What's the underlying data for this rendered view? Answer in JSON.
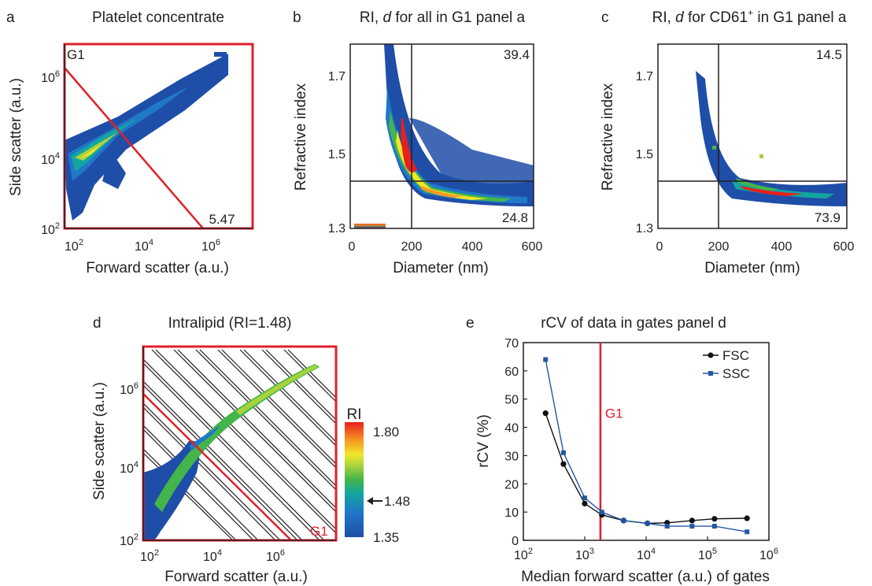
{
  "panels": {
    "a": {
      "letter": "a",
      "title": "Platelet concentrate",
      "xlabel": "Forward scatter (a.u.)",
      "ylabel": "Side scatter (a.u.)",
      "xticks": [
        "10",
        "10",
        "10"
      ],
      "xexp": [
        "2",
        "4",
        "6"
      ],
      "yticks": [
        "10",
        "10",
        "10"
      ],
      "yexp": [
        "2",
        "4",
        "6"
      ],
      "gate_label": "G1",
      "gate_value": "5.47"
    },
    "b": {
      "letter": "b",
      "title_pre": "RI, ",
      "title_d": "d",
      "title_post": " for all in G1 panel a",
      "xlabel": "Diameter (nm)",
      "ylabel": "Refractive index",
      "xticks": [
        "0",
        "200",
        "400",
        "600"
      ],
      "yticks": [
        "1.3",
        "1.5",
        "1.7"
      ],
      "quad_top": "39.4",
      "quad_bottom": "24.8"
    },
    "c": {
      "letter": "c",
      "title_pre": "RI, ",
      "title_d": "d",
      "title_post1": " for CD61",
      "title_sup": "+",
      "title_post2": " in G1 panel a",
      "xlabel": "Diameter (nm)",
      "ylabel": "Refractive index",
      "xticks": [
        "0",
        "200",
        "400",
        "600"
      ],
      "yticks": [
        "1.3",
        "1.5",
        "1.7"
      ],
      "quad_top": "14.5",
      "quad_bottom": "73.9"
    },
    "d": {
      "letter": "d",
      "title": "Intralipid (RI=1.48)",
      "xlabel": "Forward scatter (a.u.)",
      "ylabel": "Side scatter (a.u.)",
      "xticks": [
        "10",
        "10",
        "10"
      ],
      "xexp": [
        "2",
        "4",
        "6"
      ],
      "yticks": [
        "10",
        "10",
        "10"
      ],
      "yexp": [
        "2",
        "4",
        "6"
      ],
      "gate_label": "G1",
      "colorbar_title": "RI",
      "colorbar_max": "1.80",
      "colorbar_marker": "1.48",
      "colorbar_min": "1.35"
    },
    "e": {
      "letter": "e",
      "title": "rCV of data in gates panel d",
      "xlabel": "Median forward scatter (a.u.) of gates",
      "ylabel": "rCV (%)",
      "xticks": [
        "10",
        "10",
        "10",
        "10",
        "10"
      ],
      "xexp": [
        "2",
        "3",
        "4",
        "5",
        "6"
      ],
      "yticks": [
        "0",
        "10",
        "20",
        "30",
        "40",
        "50",
        "60",
        "70"
      ],
      "gate_label": "G1"
    }
  },
  "colors": {
    "gate": "#e0202a",
    "fsc": "#111111",
    "ssc": "#2457a6",
    "axis": "#231f20",
    "low": "#1f4ea8",
    "high": "#e8201c"
  },
  "chart_data": [
    {
      "panel": "a",
      "type": "heatmap",
      "title": "Platelet concentrate",
      "xlabel": "Forward scatter (a.u.)",
      "ylabel": "Side scatter (a.u.)",
      "xscale": "log",
      "yscale": "log",
      "xlim": [
        80,
        10000000
      ],
      "ylim": [
        100,
        10000000
      ],
      "gate": "G1",
      "annotation": "5.47"
    },
    {
      "panel": "b",
      "type": "heatmap",
      "title": "RI, d for all in G1 panel a",
      "xlabel": "Diameter (nm)",
      "ylabel": "Refractive index",
      "xlim": [
        0,
        600
      ],
      "ylim": [
        1.3,
        1.8
      ],
      "quadrant_lines": {
        "x": 210,
        "y": 1.43
      },
      "quadrant_values": {
        "top_right": 39.4,
        "bottom_right": 24.8
      }
    },
    {
      "panel": "c",
      "type": "heatmap",
      "title": "RI, d for CD61+ in G1 panel a",
      "xlabel": "Diameter (nm)",
      "ylabel": "Refractive index",
      "xlim": [
        0,
        600
      ],
      "ylim": [
        1.3,
        1.8
      ],
      "quadrant_lines": {
        "x": 200,
        "y": 1.43
      },
      "quadrant_values": {
        "top_right": 14.5,
        "bottom_right": 73.9
      }
    },
    {
      "panel": "d",
      "type": "heatmap",
      "title": "Intralipid (RI=1.48)",
      "xlabel": "Forward scatter (a.u.)",
      "ylabel": "Side scatter (a.u.)",
      "xscale": "log",
      "yscale": "log",
      "xlim": [
        100,
        3000000
      ],
      "ylim": [
        100,
        10000000
      ],
      "gate": "G1",
      "colorbar": {
        "label": "RI",
        "min": 1.35,
        "max": 1.8,
        "marker": 1.48
      }
    },
    {
      "panel": "e",
      "type": "line",
      "title": "rCV of data in gates panel d",
      "xlabel": "Median forward scatter (a.u.) of gates",
      "ylabel": "rCV (%)",
      "xscale": "log",
      "xlim": [
        100,
        1000000
      ],
      "ylim": [
        0,
        70
      ],
      "gate_line_x": 1800,
      "legend_position": "top-right",
      "series": [
        {
          "name": "FSC",
          "x": [
            230,
            450,
            1000,
            1900,
            4300,
            10500,
            22000,
            56000,
            130000,
            440000
          ],
          "y": [
            45,
            27,
            13,
            9,
            7,
            6,
            6.2,
            7,
            7.6,
            7.8
          ]
        },
        {
          "name": "SSC",
          "x": [
            230,
            450,
            1000,
            1900,
            4300,
            10500,
            22000,
            56000,
            130000,
            440000
          ],
          "y": [
            64,
            31,
            15,
            10,
            7,
            6,
            5,
            5,
            5,
            3
          ]
        }
      ]
    }
  ]
}
